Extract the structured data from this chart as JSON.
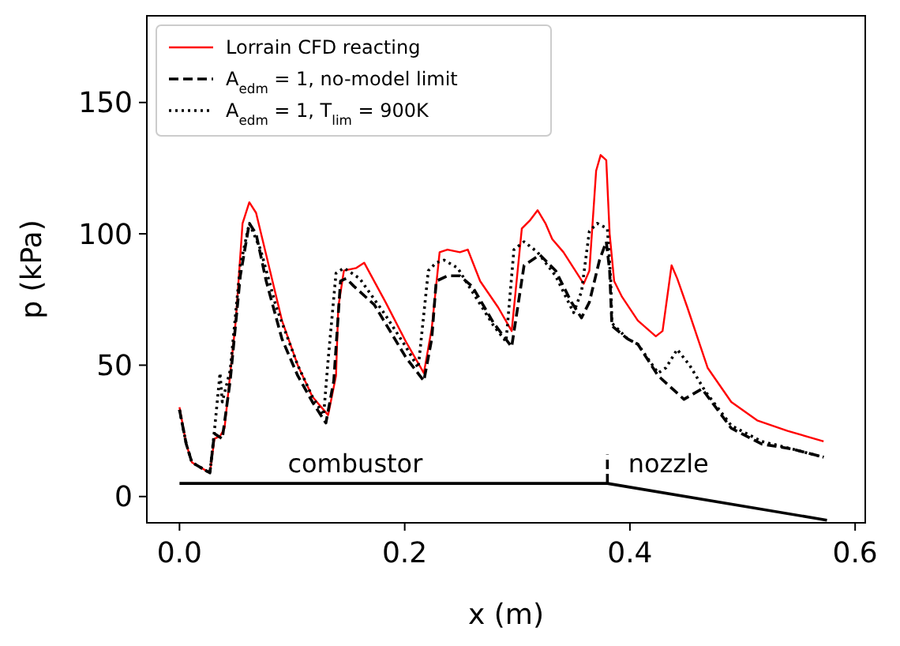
{
  "chart_data": {
    "type": "line",
    "xlabel": "x (m)",
    "ylabel": "p (kPa)",
    "xlim": [
      -0.029,
      0.609
    ],
    "ylim": [
      -10,
      183
    ],
    "xticks": [
      {
        "value": 0,
        "label": "0.0"
      },
      {
        "value": 0.2,
        "label": "0.2"
      },
      {
        "value": 0.4,
        "label": "0.4"
      },
      {
        "value": 0.6,
        "label": "0.6"
      }
    ],
    "yticks": [
      0,
      50,
      100,
      150
    ],
    "grid": false,
    "legend": "top left",
    "marker": "none",
    "annotations": [
      "combustor",
      "nozzle"
    ],
    "series": [
      {
        "name": "Lorrain CFD reacting",
        "color": "#ff0000",
        "line_style": "solid",
        "x": [
          0,
          0.006,
          0.011,
          0.027,
          0.031,
          0.036,
          0.04,
          0.05,
          0.056,
          0.062,
          0.068,
          0.077,
          0.091,
          0.105,
          0.118,
          0.132,
          0.139,
          0.141,
          0.146,
          0.157,
          0.164,
          0.183,
          0.201,
          0.217,
          0.224,
          0.231,
          0.238,
          0.249,
          0.256,
          0.267,
          0.283,
          0.295,
          0.304,
          0.311,
          0.318,
          0.325,
          0.331,
          0.341,
          0.35,
          0.359,
          0.364,
          0.37,
          0.374,
          0.379,
          0.382,
          0.386,
          0.393,
          0.407,
          0.423,
          0.429,
          0.437,
          0.442,
          0.451,
          0.469,
          0.49,
          0.513,
          0.54,
          0.572
        ],
        "values": [
          34,
          20,
          13,
          9,
          22,
          23,
          26,
          67,
          104,
          112,
          108,
          92,
          67,
          50,
          38,
          31,
          46,
          72,
          86,
          87,
          89,
          74,
          59,
          47,
          64,
          93,
          94,
          93,
          94,
          82,
          72,
          63,
          102,
          105,
          109,
          104,
          98,
          93,
          87,
          81,
          86,
          124,
          130,
          128,
          100,
          82,
          76,
          67,
          61,
          63,
          88,
          83,
          72,
          49,
          36,
          29,
          25,
          21
        ]
      },
      {
        "name": "A$_{edm}$ = 1, no-model limit",
        "color": "#000000",
        "line_style": "dashed",
        "x": [
          0,
          0.006,
          0.011,
          0.027,
          0.031,
          0.038,
          0.045,
          0.054,
          0.062,
          0.068,
          0.077,
          0.091,
          0.105,
          0.118,
          0.13,
          0.137,
          0.143,
          0.148,
          0.155,
          0.173,
          0.201,
          0.217,
          0.224,
          0.228,
          0.238,
          0.249,
          0.26,
          0.279,
          0.295,
          0.306,
          0.32,
          0.334,
          0.348,
          0.357,
          0.364,
          0.373,
          0.379,
          0.382,
          0.384,
          0.398,
          0.407,
          0.425,
          0.448,
          0.464,
          0.471,
          0.49,
          0.517,
          0.545,
          0.572
        ],
        "values": [
          33,
          20,
          13,
          9,
          24,
          22,
          44,
          84,
          104,
          100,
          82,
          60,
          46,
          36,
          28,
          44,
          82,
          83,
          80,
          73,
          53,
          44,
          60,
          82,
          84,
          84,
          80,
          66,
          57,
          88,
          92,
          86,
          74,
          68,
          74,
          90,
          97,
          86,
          65,
          60,
          58,
          46,
          37,
          41,
          37,
          26,
          20,
          18,
          15
        ]
      },
      {
        "name": "A$_{edm}$ = 1, T$_{lim}$ = 900K",
        "color": "#000000",
        "line_style": "dotted",
        "x": [
          0,
          0.006,
          0.011,
          0.027,
          0.031,
          0.036,
          0.038,
          0.045,
          0.054,
          0.062,
          0.072,
          0.086,
          0.105,
          0.118,
          0.128,
          0.132,
          0.139,
          0.146,
          0.16,
          0.183,
          0.201,
          0.212,
          0.221,
          0.228,
          0.235,
          0.247,
          0.26,
          0.279,
          0.29,
          0.297,
          0.306,
          0.318,
          0.334,
          0.35,
          0.357,
          0.364,
          0.371,
          0.38,
          0.383,
          0.384,
          0.398,
          0.407,
          0.425,
          0.432,
          0.442,
          0.453,
          0.467,
          0.49,
          0.517,
          0.545,
          0.572
        ],
        "values": [
          33,
          20,
          13,
          9,
          25,
          47,
          36,
          48,
          88,
          104,
          94,
          72,
          50,
          38,
          31,
          52,
          85,
          87,
          83,
          69,
          57,
          49,
          86,
          89,
          90,
          87,
          78,
          65,
          59,
          94,
          97,
          93,
          84,
          70,
          78,
          101,
          104,
          102,
          82,
          66,
          60,
          58,
          47,
          49,
          56,
          50,
          40,
          27,
          21,
          18,
          15
        ]
      },
      {
        "color": "#000000",
        "line_style": "solid",
        "x": [
          0,
          0.38,
          0.575
        ],
        "values": [
          5,
          5,
          -9
        ]
      },
      {
        "color": "#000000",
        "line_style": "dashed",
        "x": [
          0.38,
          0.38
        ],
        "values": [
          5,
          16
        ]
      }
    ]
  }
}
